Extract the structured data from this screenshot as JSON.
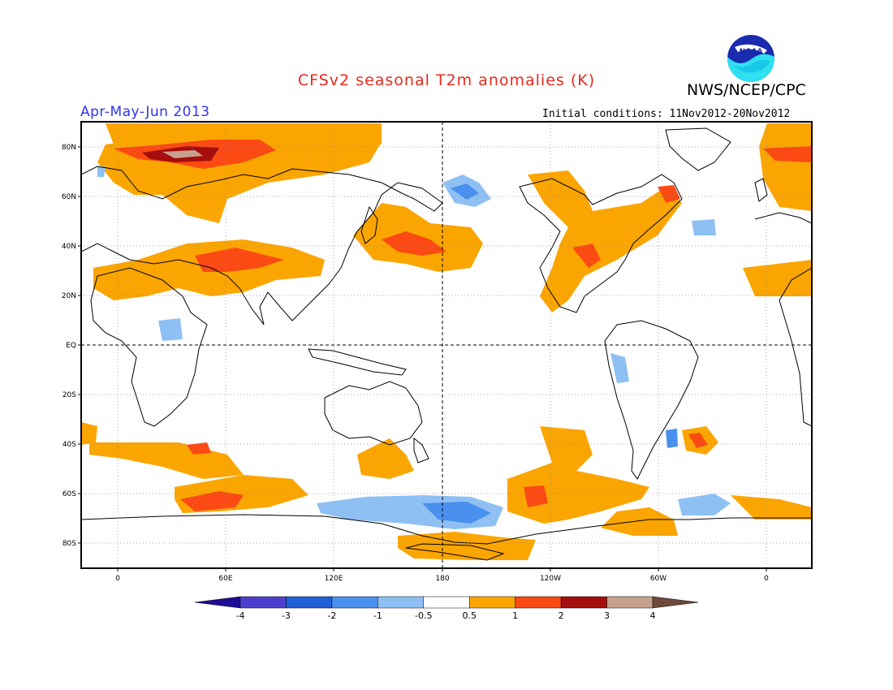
{
  "header": {
    "title": "CFSv2 seasonal T2m anomalies (K)",
    "organization": "NWS/NCEP/CPC",
    "logo_icon": "noaa-logo-icon",
    "logo_text": "NOAA",
    "period": "Apr-May-Jun 2013",
    "initial_conditions": "Initial conditions: 11Nov2012-20Nov2012"
  },
  "map": {
    "projection": "cylindrical-equidistant",
    "center_longitude": "180",
    "grid": "dashed",
    "lat_labels": [
      "80N",
      "60N",
      "40N",
      "20N",
      "EQ",
      "20S",
      "40S",
      "60S",
      "80S"
    ],
    "lon_labels": [
      "0",
      "60E",
      "120E",
      "180",
      "120W",
      "60W",
      "0"
    ]
  },
  "legend": {
    "labels": [
      "-4",
      "-3",
      "-2",
      "-1",
      "-0.5",
      "0.5",
      "1",
      "2",
      "3",
      "4"
    ],
    "colors": [
      "#1e0c96",
      "#4c3fcf",
      "#2060d8",
      "#4a90ee",
      "#8ec0f4",
      "#ffffff",
      "#fba500",
      "#fb4a14",
      "#a60d0d",
      "#c8a08e",
      "#6e4a3c"
    ]
  },
  "palette": {
    "title_color": "#e8291c",
    "period_color": "#3333ee",
    "warm_1": "#fba500",
    "warm_2": "#fb4a14",
    "warm_3": "#a60d0d",
    "warm_4": "#c8a08e",
    "cool_1": "#8ec0f4",
    "cool_2": "#4a90ee"
  }
}
